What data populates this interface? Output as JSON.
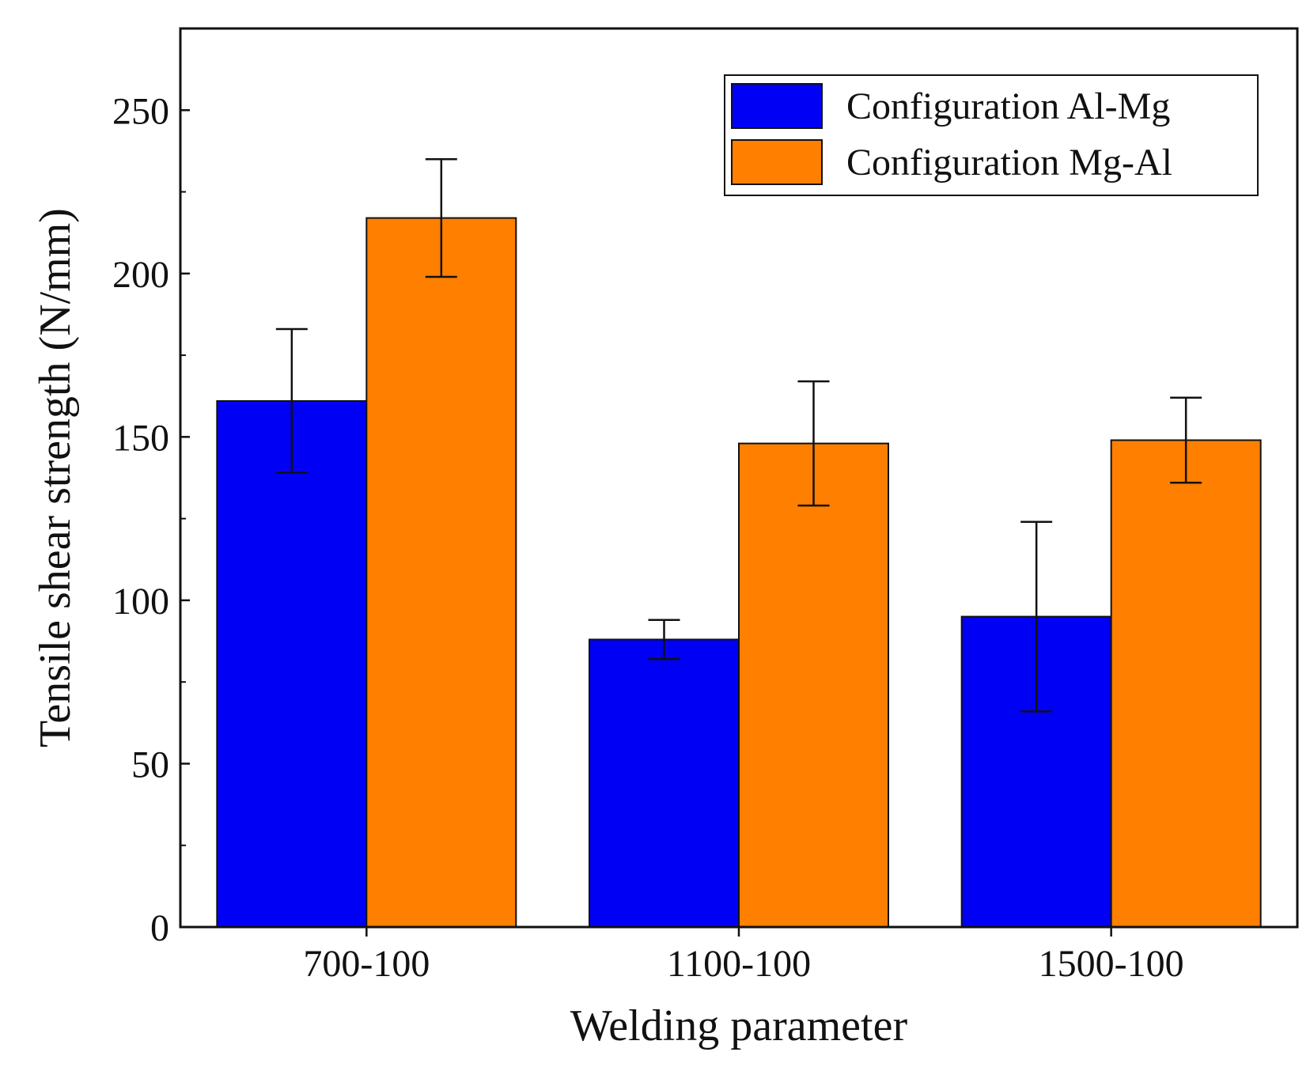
{
  "chart_data": {
    "type": "bar",
    "title": "",
    "xlabel": "Welding parameter",
    "ylabel": "Tensile shear strength (N/mm)",
    "categories": [
      "700-100",
      "1100-100",
      "1500-100"
    ],
    "ylim": [
      0,
      275
    ],
    "yticks": [
      0,
      50,
      100,
      150,
      200,
      250
    ],
    "yticks_minor": [
      25,
      75,
      125,
      175,
      225
    ],
    "grid": false,
    "legend_position": "top-right",
    "series": [
      {
        "name": "Configuration Al-Mg",
        "color": "#0000f5",
        "values": [
          161,
          88,
          95
        ],
        "errors": [
          22,
          6,
          29
        ]
      },
      {
        "name": "Configuration Mg-Al",
        "color": "#ff7f00",
        "values": [
          217,
          148,
          149
        ],
        "errors": [
          18,
          19,
          13
        ]
      }
    ]
  }
}
